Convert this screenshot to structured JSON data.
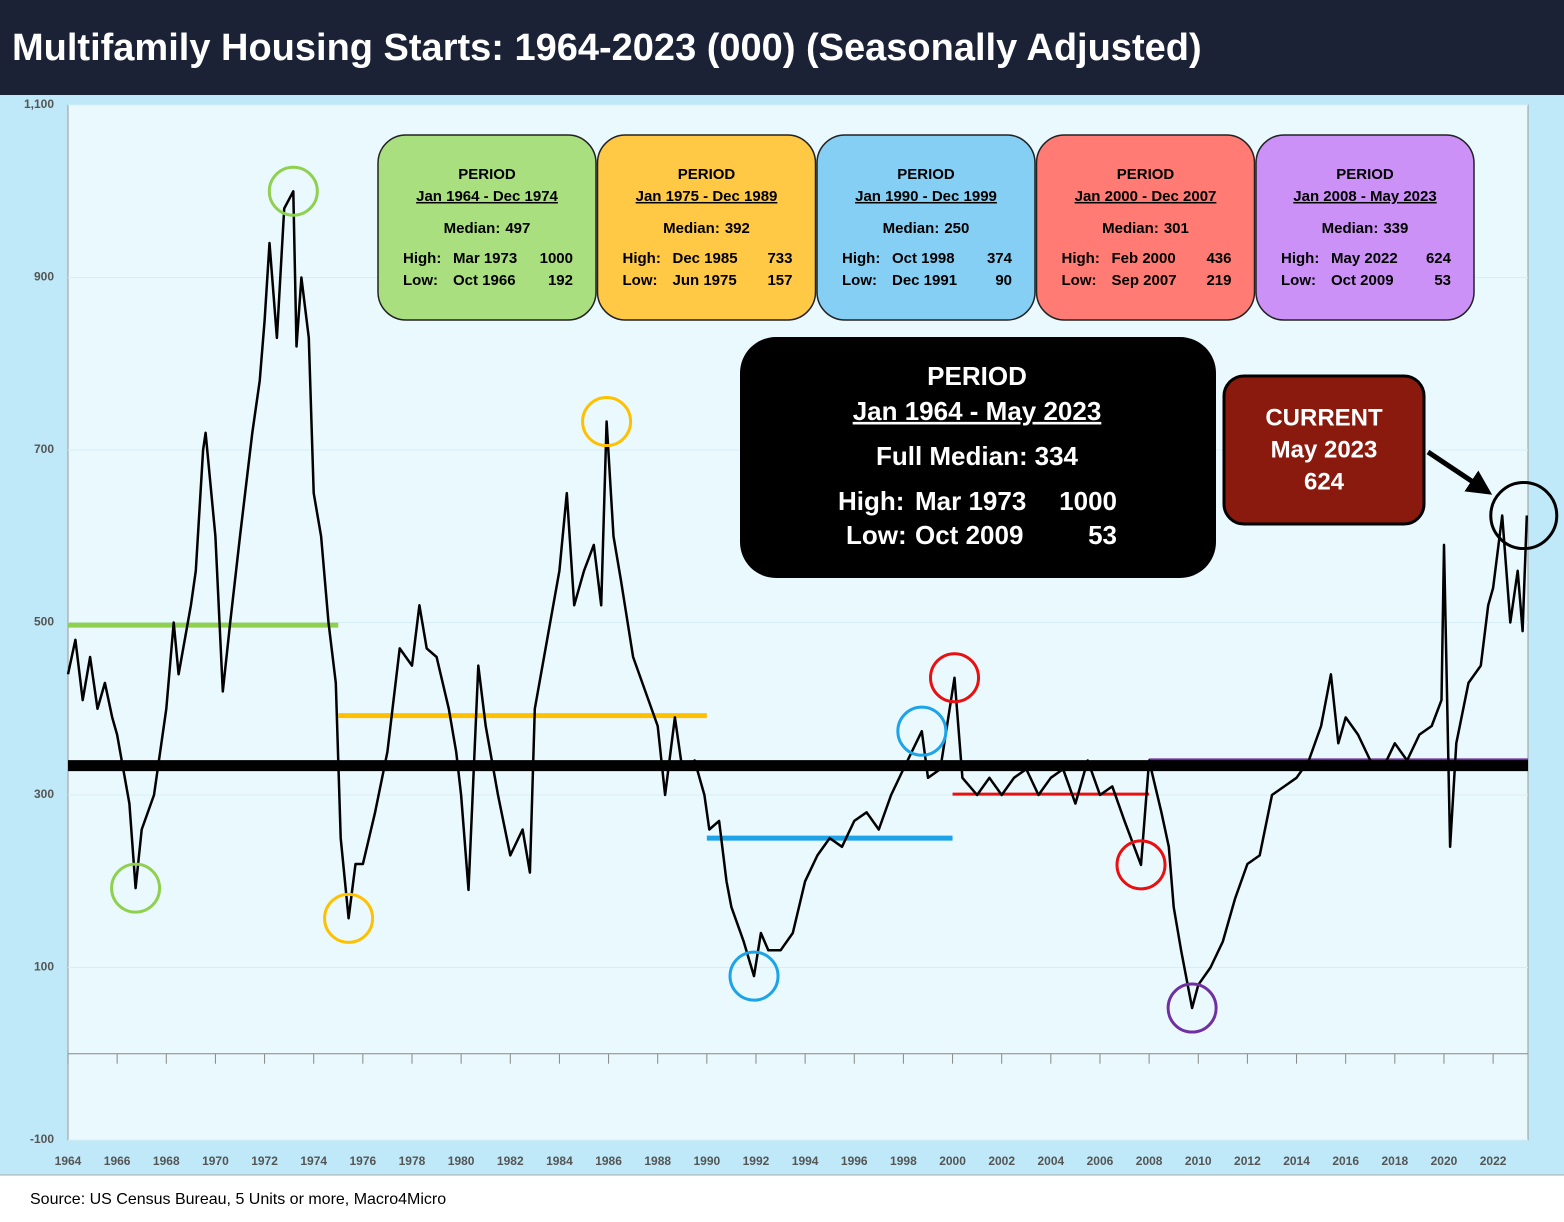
{
  "chart_data": {
    "type": "line",
    "title": "Multifamily Housing Starts: 1964-2023 (000) (Seasonally Adjusted)",
    "source": "Source: US Census Bureau, 5 Units or more, Macro4Micro",
    "xlim": [
      1964,
      2023.42
    ],
    "xticks": [
      1964,
      1966,
      1968,
      1970,
      1972,
      1974,
      1976,
      1978,
      1980,
      1982,
      1984,
      1986,
      1988,
      1990,
      1992,
      1994,
      1996,
      1998,
      2000,
      2002,
      2004,
      2006,
      2008,
      2010,
      2012,
      2014,
      2016,
      2018,
      2020,
      2022
    ],
    "ylim": [
      -100,
      1100
    ],
    "yticks": [
      -100,
      100,
      300,
      500,
      700,
      900,
      {
        "value": 1100,
        "label": "1,100"
      }
    ],
    "grid": true,
    "color": "#000000",
    "x": [
      1964,
      1964.3,
      1964.6,
      1964.9,
      1965.2,
      1965.5,
      1965.8,
      1966,
      1966.5,
      1966.75,
      1967,
      1967.5,
      1968,
      1968.3,
      1968.5,
      1969,
      1969.2,
      1969.5,
      1969.6,
      1970,
      1970.3,
      1970.6,
      1971,
      1971.5,
      1971.8,
      1972,
      1972.2,
      1972.5,
      1972.8,
      1973.17,
      1973.3,
      1973.5,
      1973.8,
      1974,
      1974.3,
      1974.6,
      1974.9,
      1975.1,
      1975.42,
      1975.7,
      1976,
      1976.5,
      1977,
      1977.5,
      1978,
      1978.3,
      1978.6,
      1979,
      1979.5,
      1979.8,
      1980,
      1980.3,
      1980.7,
      1981,
      1981.5,
      1982,
      1982.5,
      1982.8,
      1983,
      1983.5,
      1984,
      1984.3,
      1984.6,
      1985,
      1985.4,
      1985.7,
      1985.92,
      1986.2,
      1986.5,
      1987,
      1987.5,
      1988,
      1988.3,
      1988.7,
      1989,
      1989.5,
      1989.9,
      1990.1,
      1990.5,
      1990.8,
      1991,
      1991.5,
      1991.92,
      1992.2,
      1992.5,
      1993,
      1993.5,
      1994,
      1994.5,
      1995,
      1995.5,
      1996,
      1996.5,
      1997,
      1997.5,
      1998,
      1998.75,
      1999,
      1999.5,
      2000.08,
      2000.4,
      2001,
      2001.5,
      2002,
      2002.5,
      2003,
      2003.5,
      2004,
      2004.5,
      2005,
      2005.5,
      2006,
      2006.5,
      2007,
      2007.67,
      2008,
      2008.5,
      2008.8,
      2009,
      2009.3,
      2009.75,
      2010,
      2010.5,
      2011,
      2011.5,
      2012,
      2012.5,
      2013,
      2013.5,
      2014,
      2014.5,
      2015,
      2015.4,
      2015.7,
      2016,
      2016.5,
      2017,
      2017.5,
      2018,
      2018.5,
      2019,
      2019.5,
      2019.9,
      2020,
      2020.25,
      2020.5,
      2021,
      2021.5,
      2021.8,
      2022,
      2022.37,
      2022.7,
      2023,
      2023.2,
      2023.37
    ],
    "values": [
      440,
      480,
      410,
      460,
      400,
      430,
      390,
      370,
      290,
      192,
      260,
      300,
      400,
      500,
      440,
      520,
      560,
      700,
      720,
      600,
      420,
      500,
      600,
      720,
      780,
      850,
      940,
      830,
      980,
      1000,
      820,
      900,
      830,
      650,
      600,
      500,
      430,
      250,
      157,
      220,
      220,
      280,
      350,
      470,
      450,
      520,
      470,
      460,
      400,
      350,
      300,
      190,
      450,
      380,
      300,
      230,
      260,
      210,
      400,
      480,
      560,
      650,
      520,
      560,
      590,
      520,
      733,
      600,
      550,
      460,
      420,
      380,
      300,
      390,
      330,
      340,
      300,
      260,
      270,
      200,
      170,
      130,
      90,
      140,
      120,
      120,
      140,
      200,
      230,
      250,
      240,
      270,
      280,
      260,
      300,
      330,
      374,
      320,
      330,
      436,
      320,
      300,
      320,
      300,
      320,
      330,
      300,
      320,
      330,
      290,
      340,
      300,
      310,
      270,
      219,
      340,
      280,
      240,
      170,
      120,
      53,
      80,
      100,
      130,
      180,
      220,
      230,
      300,
      310,
      320,
      340,
      380,
      440,
      360,
      390,
      370,
      340,
      330,
      360,
      340,
      370,
      380,
      410,
      590,
      240,
      360,
      430,
      450,
      520,
      540,
      624,
      500,
      560,
      490,
      624
    ],
    "periods": [
      {
        "title": "PERIOD",
        "range": "Jan 1964 - Dec 1974",
        "color": "#a9df7f",
        "line_color": "#8fd14f",
        "x_range": [
          1964,
          1975
        ],
        "median": {
          "label": "Median:",
          "value": 497
        },
        "high": {
          "label": "High:",
          "date": "Mar 1973",
          "value": 1000,
          "x": 1973.17
        },
        "low": {
          "label": "Low:",
          "date": "Oct 1966",
          "value": 192,
          "x": 1966.75
        }
      },
      {
        "title": "PERIOD",
        "range": "Jan 1975 - Dec 1989",
        "color": "#ffc845",
        "line_color": "#ffc000",
        "x_range": [
          1975,
          1990
        ],
        "median": {
          "label": "Median:",
          "value": 392
        },
        "high": {
          "label": "High:",
          "date": "Dec 1985",
          "value": 733,
          "x": 1985.92
        },
        "low": {
          "label": "Low:",
          "date": "Jun 1975",
          "value": 157,
          "x": 1975.42
        }
      },
      {
        "title": "PERIOD",
        "range": "Jan 1990 - Dec 1999",
        "color": "#85cff5",
        "line_color": "#1ca3e8",
        "x_range": [
          1990,
          2000
        ],
        "median": {
          "label": "Median:",
          "value": 250
        },
        "high": {
          "label": "High:",
          "date": "Oct 1998",
          "value": 374,
          "x": 1998.75
        },
        "low": {
          "label": "Low:",
          "date": "Dec 1991",
          "value": 90,
          "x": 1991.92
        }
      },
      {
        "title": "PERIOD",
        "range": "Jan 2000 - Dec 2007",
        "color": "#ff7b73",
        "line_color": "#e81010",
        "x_range": [
          2000,
          2008
        ],
        "median": {
          "label": "Median:",
          "value": 301
        },
        "high": {
          "label": "High:",
          "date": "Feb 2000",
          "value": 436,
          "x": 2000.08
        },
        "low": {
          "label": "Low:",
          "date": "Sep 2007",
          "value": 219,
          "x": 2007.67
        }
      },
      {
        "title": "PERIOD",
        "range": "Jan 2008 - May 2023",
        "color": "#cc91f7",
        "line_color": "#7030a0",
        "x_range": [
          2008,
          2023.42
        ],
        "median": {
          "label": "Median:",
          "value": 339
        },
        "high": {
          "label": "High:",
          "date": "May 2022",
          "value": 624
        },
        "low": {
          "label": "Low:",
          "date": "Oct 2009",
          "value": 53,
          "x": 2009.75
        }
      }
    ],
    "full": {
      "title": "PERIOD",
      "range": "Jan 1964 - May 2023",
      "color": "#000000",
      "x_range": [
        1964,
        2023.42
      ],
      "median": {
        "label": "Full Median:",
        "value": 334
      },
      "high": {
        "label": "High:",
        "date": "Mar 1973",
        "value": 1000
      },
      "low": {
        "label": "Low:",
        "date": "Oct 2009",
        "value": 53
      }
    },
    "current": {
      "label": "CURRENT",
      "date": "May 2023",
      "value": 624,
      "x": 2023.37,
      "color": "#8b1a0e"
    }
  }
}
